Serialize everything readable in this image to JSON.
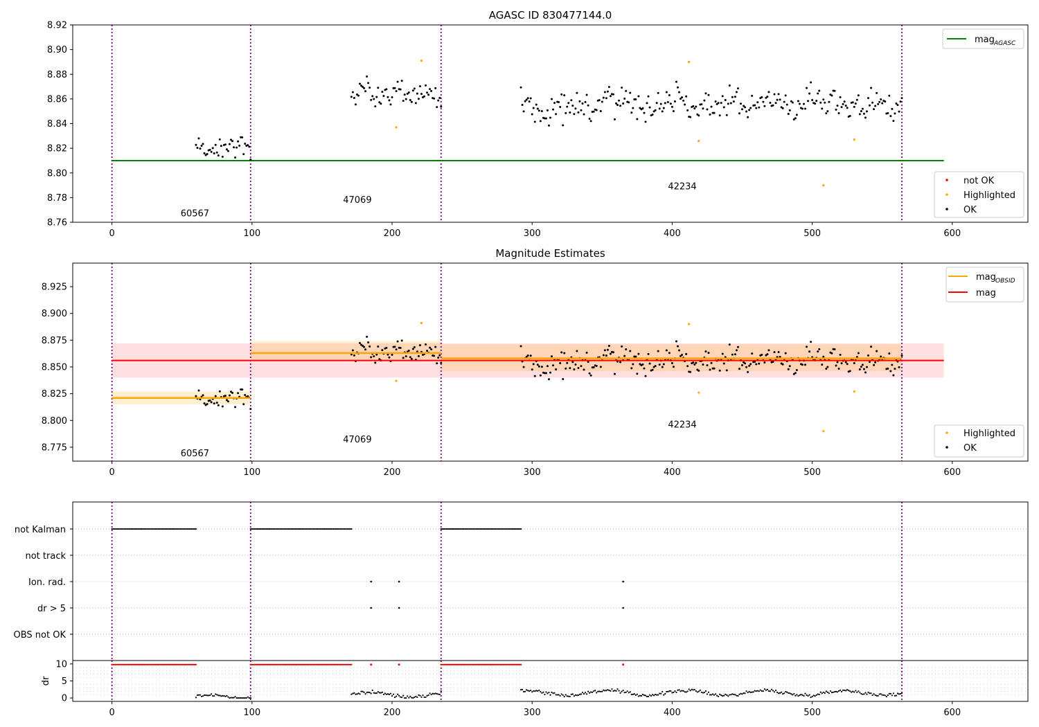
{
  "chart_data": [
    {
      "type": "scatter",
      "title": "AGASC ID 830477144.0",
      "ylim": [
        8.76,
        8.92
      ],
      "xlim": [
        -28,
        654
      ],
      "xticks": [
        0,
        100,
        200,
        300,
        400,
        500,
        600
      ],
      "yticks": [
        8.76,
        8.78,
        8.8,
        8.82,
        8.84,
        8.86,
        8.88,
        8.9,
        8.92
      ],
      "obsid_boundaries": [
        0,
        99,
        235,
        564
      ],
      "obsid_labels": [
        {
          "text": "60567",
          "x": 49,
          "y": 8.767
        },
        {
          "text": "47069",
          "x": 165,
          "y": 8.778
        },
        {
          "text": "42234",
          "x": 397,
          "y": 8.789
        }
      ],
      "reference_lines": [
        {
          "name": "mag_AGASC",
          "value": 8.81,
          "x": [
            0,
            594
          ],
          "color": "#008000"
        }
      ],
      "segments": [
        {
          "x": [
            60,
            99
          ],
          "mean": 8.821,
          "sd": 0.007
        },
        {
          "x": [
            171,
            235
          ],
          "mean": 8.862,
          "sd": 0.008
        },
        {
          "x": [
            292,
            564
          ],
          "mean": 8.857,
          "sd": 0.009
        }
      ],
      "highlighted_points": [
        {
          "x": 203,
          "y": 8.837
        },
        {
          "x": 221,
          "y": 8.891
        },
        {
          "x": 412,
          "y": 8.89
        },
        {
          "x": 419,
          "y": 8.826
        },
        {
          "x": 508,
          "y": 8.79
        },
        {
          "x": 530,
          "y": 8.827
        }
      ],
      "legend_lines": {
        "items": [
          {
            "label": "mag",
            "sub": "AGASC",
            "color": "#008000"
          }
        ]
      },
      "legend_points": {
        "items": [
          {
            "label": "not OK",
            "color": "#ff0000"
          },
          {
            "label": "Highlighted",
            "color": "#ffa500"
          },
          {
            "label": "OK",
            "color": "#000000"
          }
        ]
      }
    },
    {
      "type": "scatter",
      "title": "Magnitude Estimates",
      "ylim": [
        8.762,
        8.947
      ],
      "xlim": [
        -28,
        654
      ],
      "xticks": [
        0,
        100,
        200,
        300,
        400,
        500,
        600
      ],
      "yticks": [
        8.775,
        8.8,
        8.825,
        8.85,
        8.875,
        8.9,
        8.925
      ],
      "obsid_boundaries": [
        0,
        99,
        235,
        564
      ],
      "obsid_labels": [
        {
          "text": "60567",
          "x": 49,
          "y": 8.769
        },
        {
          "text": "47069",
          "x": 165,
          "y": 8.782
        },
        {
          "text": "42234",
          "x": 397,
          "y": 8.796
        }
      ],
      "mag": {
        "value": 8.856,
        "band": [
          8.84,
          8.872
        ],
        "x": [
          0,
          594
        ],
        "color": "#ff0000"
      },
      "mag_obsid": [
        {
          "x": [
            0,
            99
          ],
          "value": 8.821,
          "band": [
            8.815,
            8.827
          ]
        },
        {
          "x": [
            99,
            235
          ],
          "value": 8.863,
          "band": [
            8.857,
            8.874
          ]
        },
        {
          "x": [
            235,
            564
          ],
          "value": 8.858,
          "band": [
            8.846,
            8.871
          ]
        }
      ],
      "segments": [
        {
          "x": [
            60,
            99
          ],
          "mean": 8.821,
          "sd": 0.007
        },
        {
          "x": [
            171,
            235
          ],
          "mean": 8.862,
          "sd": 0.008
        },
        {
          "x": [
            292,
            564
          ],
          "mean": 8.857,
          "sd": 0.009
        }
      ],
      "highlighted_points": [
        {
          "x": 203,
          "y": 8.837
        },
        {
          "x": 221,
          "y": 8.891
        },
        {
          "x": 412,
          "y": 8.89
        },
        {
          "x": 419,
          "y": 8.826
        },
        {
          "x": 508,
          "y": 8.79
        },
        {
          "x": 530,
          "y": 8.827
        }
      ],
      "legend_lines": {
        "items": [
          {
            "label": "mag",
            "sub": "OBSID",
            "color": "#ffa500"
          },
          {
            "label": "mag",
            "sub": "",
            "color": "#ff0000"
          }
        ]
      },
      "legend_points": {
        "items": [
          {
            "label": "Highlighted",
            "color": "#ffa500"
          },
          {
            "label": "OK",
            "color": "#000000"
          }
        ]
      }
    },
    {
      "type": "scatter",
      "title": "",
      "categories": [
        "not Kalman",
        "not track",
        "Ion. rad.",
        "dr > 5",
        "OBS not OK"
      ],
      "xlim": [
        -28,
        654
      ],
      "obsid_boundaries": [
        0,
        99,
        235,
        564
      ],
      "flag_series": [
        {
          "category": "not Kalman",
          "runs": [
            [
              0,
              60
            ],
            [
              99,
              171
            ],
            [
              235,
              292
            ]
          ]
        },
        {
          "category": "Ion. rad.",
          "points": [
            185,
            205,
            365
          ]
        },
        {
          "category": "dr > 5",
          "points": [
            185,
            205,
            365
          ]
        }
      ]
    },
    {
      "type": "line",
      "ylabel": "dr",
      "ylim": [
        -1,
        11
      ],
      "xlim": [
        -28,
        654
      ],
      "xticks": [
        0,
        100,
        200,
        300,
        400,
        500,
        600
      ],
      "yticks": [
        0,
        5,
        10
      ],
      "obsid_boundaries": [
        0,
        99,
        235,
        564
      ],
      "high_dr_runs": [
        [
          0,
          60
        ],
        [
          99,
          171
        ],
        [
          235,
          292
        ]
      ],
      "high_dr_points": [
        185,
        205,
        365
      ],
      "high_dr_value": 9.8,
      "dr_segments": [
        {
          "x": [
            60,
            99
          ],
          "level": 0.2
        },
        {
          "x": [
            171,
            235
          ],
          "level": 1.0
        },
        {
          "x": [
            292,
            564
          ],
          "level": 1.5
        }
      ]
    }
  ]
}
